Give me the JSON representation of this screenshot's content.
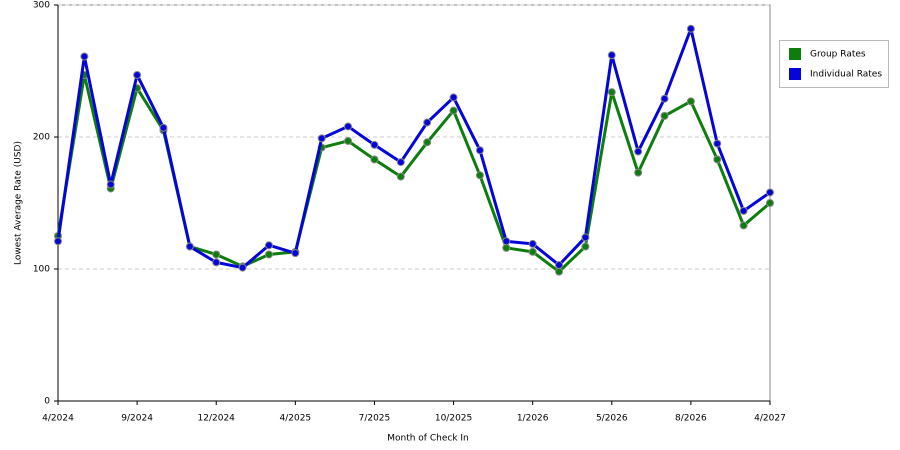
{
  "chart_data": {
    "type": "line",
    "x_label": "Month of Check In",
    "y_label": "Lowest Average Rate (USD)",
    "categories": [
      "4/2024",
      null,
      null,
      "9/2024",
      null,
      null,
      "12/2024",
      null,
      null,
      "4/2025",
      null,
      null,
      "7/2025",
      null,
      null,
      "10/2025",
      null,
      null,
      "1/2026",
      null,
      null,
      "5/2026",
      null,
      null,
      "8/2026",
      null,
      null,
      "4/2027"
    ],
    "series": [
      {
        "name": "Group Rates",
        "color": "#0d7d0d",
        "values": [
          125,
          247,
          161,
          237,
          205,
          117,
          111,
          102,
          111,
          113,
          192,
          197,
          183,
          170,
          196,
          220,
          171,
          116,
          113,
          98,
          117,
          234,
          173,
          216,
          227,
          183,
          133,
          150
        ]
      },
      {
        "name": "Individual Rates",
        "color": "#0505d8",
        "values": [
          121,
          261,
          164,
          247,
          207,
          117,
          105,
          101,
          118,
          112,
          199,
          208,
          194,
          181,
          211,
          230,
          190,
          121,
          119,
          103,
          124,
          262,
          189,
          229,
          282,
          195,
          144,
          158
        ]
      }
    ],
    "ylim": [
      0,
      300
    ],
    "yticks": [
      0,
      100,
      200,
      300
    ],
    "grid": true,
    "legend": "right"
  }
}
